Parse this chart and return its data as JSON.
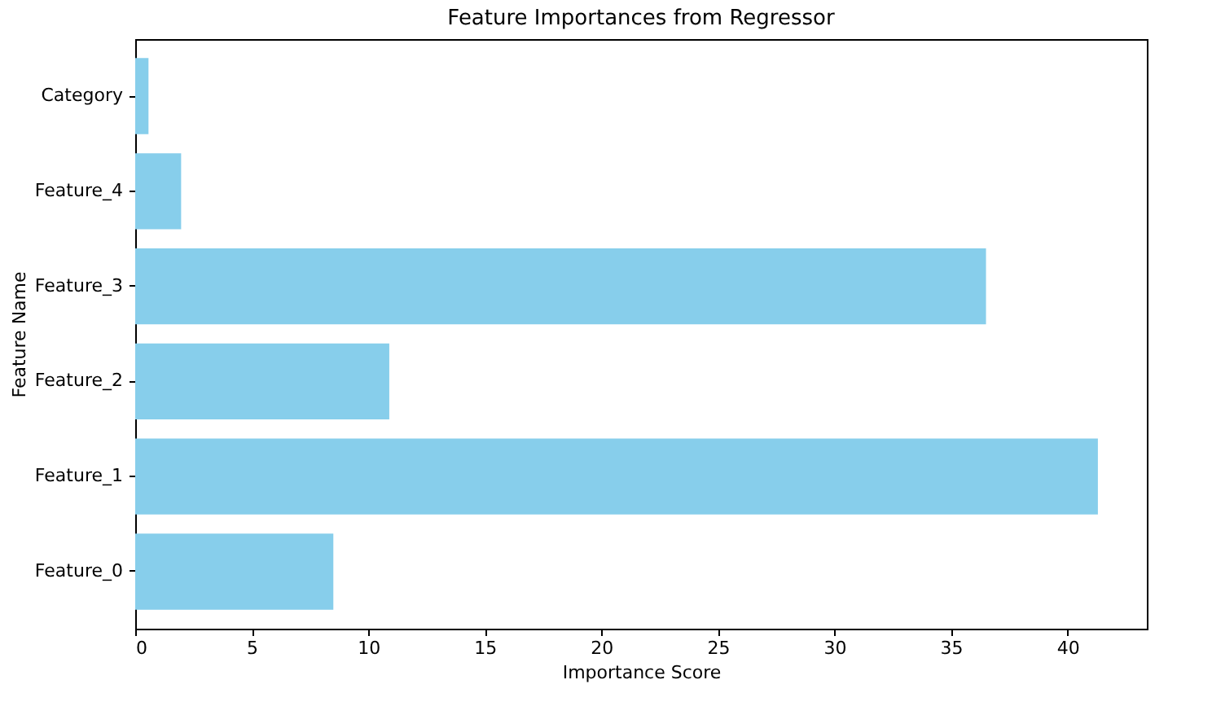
{
  "chart_data": {
    "type": "bar",
    "orientation": "horizontal",
    "title": "Feature Importances from Regressor",
    "xlabel": "Importance Score",
    "ylabel": "Feature Name",
    "categories": [
      "Category",
      "Feature_4",
      "Feature_3",
      "Feature_2",
      "Feature_1",
      "Feature_0"
    ],
    "values": [
      0.57,
      1.97,
      36.5,
      10.9,
      41.3,
      8.5
    ],
    "color": "#87ceeb",
    "xlim": [
      0,
      43.4
    ],
    "xticks": [
      0,
      5,
      10,
      15,
      20,
      25,
      30,
      35,
      40
    ],
    "grid": false
  }
}
